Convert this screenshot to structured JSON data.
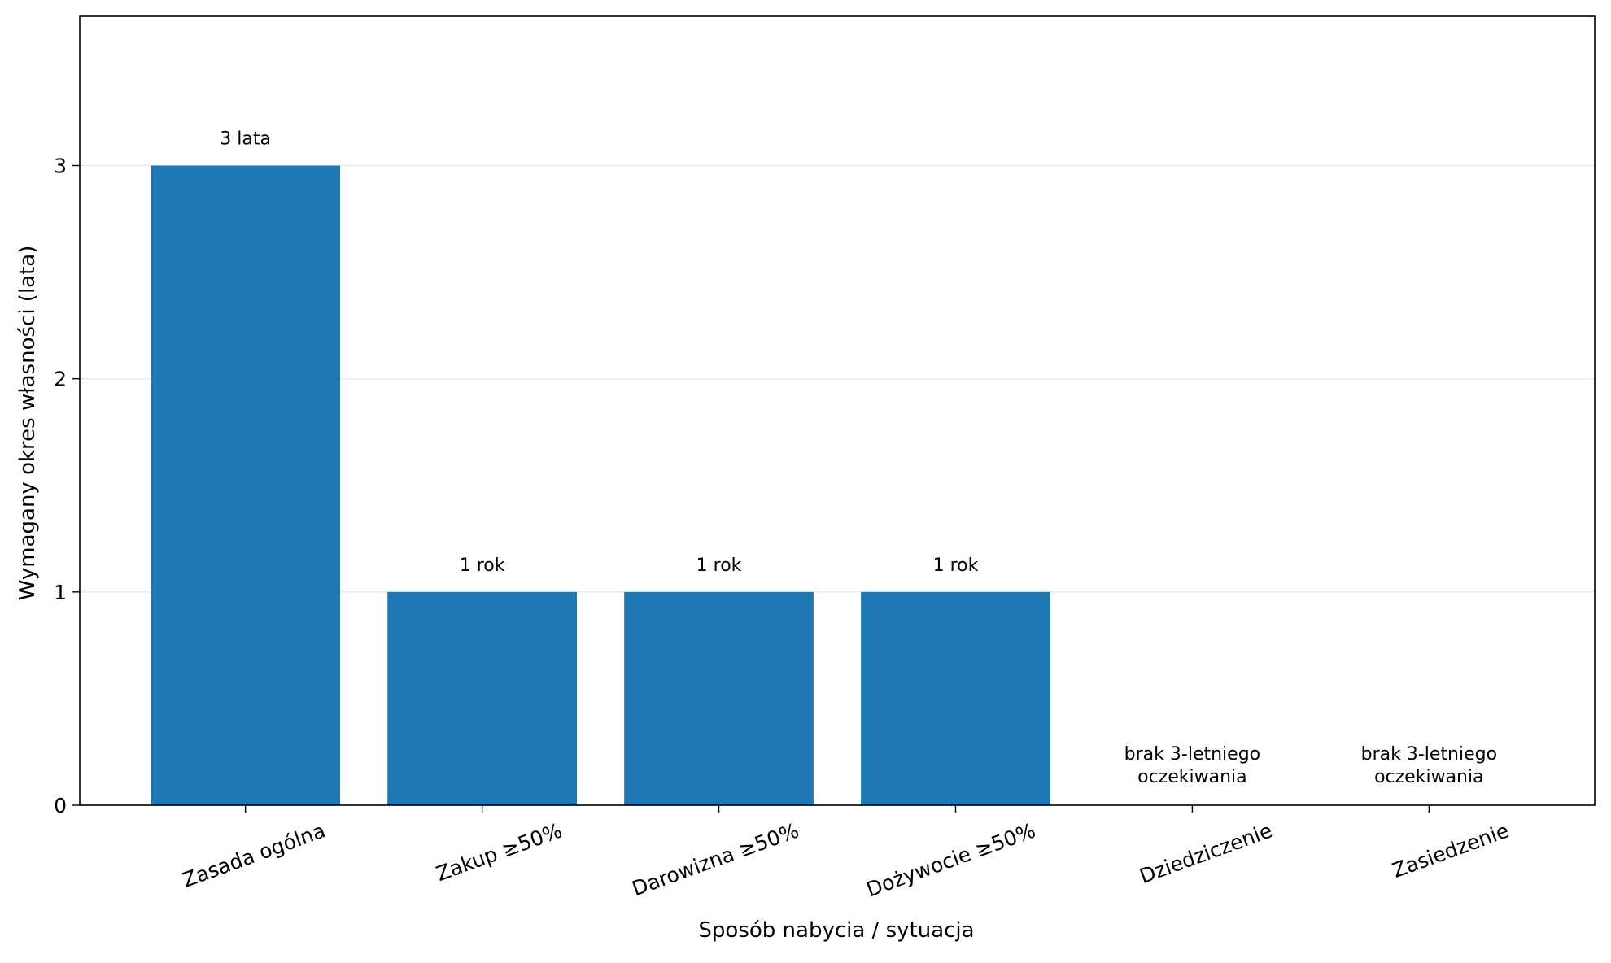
{
  "chart_data": {
    "type": "bar",
    "categories": [
      "Zasada ogólna",
      "Zakup ≥50%",
      "Darowizna ≥50%",
      "Dożywocie ≥50%",
      "Dziedziczenie",
      "Zasiedzenie"
    ],
    "values": [
      3,
      1,
      1,
      1,
      0,
      0
    ],
    "data_labels": [
      [
        "3 lata"
      ],
      [
        "1 rok"
      ],
      [
        "1 rok"
      ],
      [
        "1 rok"
      ],
      [
        "brak 3-letniego",
        "oczekiwania"
      ],
      [
        "brak 3-letniego",
        "oczekiwania"
      ]
    ],
    "xlabel": "Sposób nabycia / sytuacja",
    "ylabel": "Wymagany okres własności (lata)",
    "ylim": [
      0,
      3.7
    ],
    "yticks": [
      0,
      1,
      2,
      3
    ],
    "grid": "y",
    "bar_color": "#1f77b4"
  }
}
